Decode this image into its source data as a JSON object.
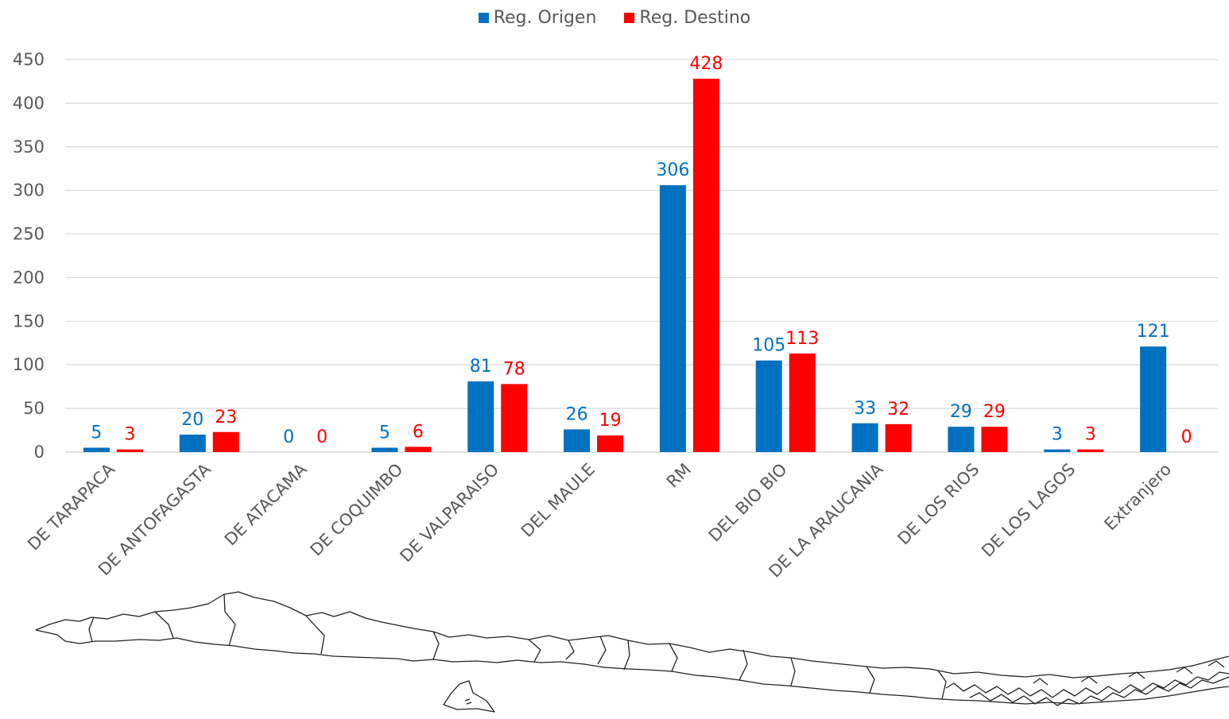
{
  "colors": {
    "origen": "#0070C0",
    "destino": "#FF0000",
    "grid": "#D9D9D9",
    "axis_text": "#595959",
    "map_stroke": "#222222"
  },
  "chart_data": {
    "type": "bar",
    "title": "",
    "xlabel": "",
    "ylabel": "",
    "ylim": [
      0,
      450
    ],
    "yticks": [
      0,
      50,
      100,
      150,
      200,
      250,
      300,
      350,
      400,
      450
    ],
    "grid": true,
    "legend_position": "top-center",
    "categories": [
      "DE TARAPACA",
      "DE ANTOFAGASTA",
      "DE ATACAMA",
      "DE COQUIMBO",
      "DE VALPARAISO",
      "DEL MAULE",
      "RM",
      "DEL BIO BIO",
      "DE LA ARAUCANIA",
      "DE LOS RIOS",
      "DE LOS LAGOS",
      "Extranjero"
    ],
    "series": [
      {
        "name": "Reg. Origen",
        "color": "#0070C0",
        "values": [
          5,
          20,
          0,
          5,
          81,
          26,
          306,
          105,
          33,
          29,
          3,
          121
        ]
      },
      {
        "name": "Reg. Destino",
        "color": "#FF0000",
        "values": [
          3,
          23,
          0,
          6,
          78,
          19,
          428,
          113,
          32,
          29,
          3,
          0
        ]
      }
    ]
  },
  "map": {
    "icon": "chile-regions-map-icon"
  }
}
